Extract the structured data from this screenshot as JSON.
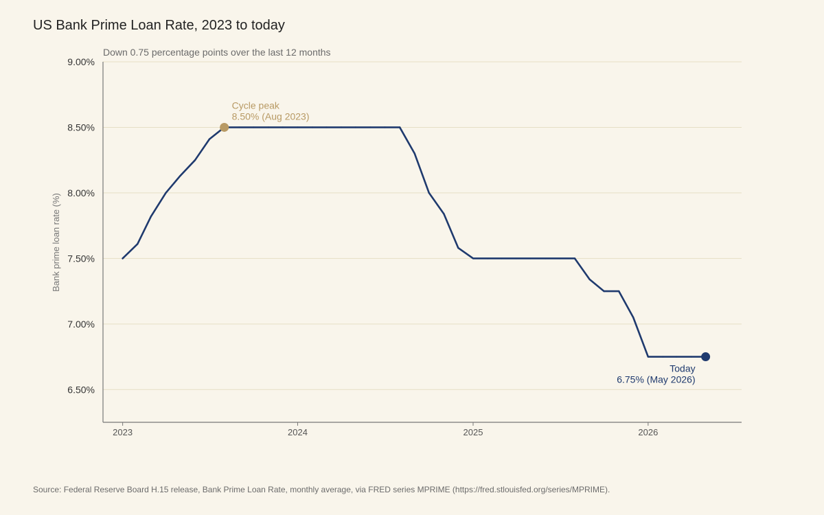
{
  "chart_data": {
    "type": "line",
    "title": "US Bank Prime Loan Rate, 2023 to today",
    "subtitle": "Down 0.75 percentage points over the last 12 months",
    "ylabel": "Bank prime loan rate (%)",
    "xlabel": "",
    "source": "Source: Federal Reserve Board H.15 release, Bank Prime Loan Rate, monthly average, via FRED series MPRIME (https://fred.stlouisfed.org/series/MPRIME).",
    "ylim": [
      6.25,
      9.0
    ],
    "xlim": [
      "2022-11-21",
      "2026-07-15"
    ],
    "y_ticks": [
      6.5,
      7.0,
      7.5,
      8.0,
      8.5,
      9.0
    ],
    "y_tick_labels": [
      "6.50%",
      "7.00%",
      "7.50%",
      "8.00%",
      "8.50%",
      "9.00%"
    ],
    "x_ticks": [
      "2023-01-01",
      "2024-01-01",
      "2025-01-01",
      "2026-01-01"
    ],
    "x_tick_labels": [
      "2023",
      "2024",
      "2025",
      "2026"
    ],
    "grid": "horizontal",
    "series": [
      {
        "x": [
          "2023-01-01",
          "2023-02-01",
          "2023-03-01",
          "2023-04-01",
          "2023-05-01",
          "2023-06-01",
          "2023-07-01",
          "2023-08-01",
          "2023-09-01",
          "2023-10-01",
          "2023-11-01",
          "2023-12-01",
          "2024-01-01",
          "2024-02-01",
          "2024-03-01",
          "2024-04-01",
          "2024-05-01",
          "2024-06-01",
          "2024-07-01",
          "2024-08-01",
          "2024-09-01",
          "2024-10-01",
          "2024-11-01",
          "2024-12-01",
          "2025-01-01",
          "2025-02-01",
          "2025-03-01",
          "2025-04-01",
          "2025-05-01",
          "2025-06-01",
          "2025-07-01",
          "2025-08-01",
          "2025-09-01",
          "2025-10-01",
          "2025-11-01",
          "2025-12-01",
          "2026-01-01",
          "2026-02-01",
          "2026-03-01",
          "2026-04-01",
          "2026-05-01"
        ],
        "values": [
          7.5,
          7.61,
          7.82,
          8.0,
          8.13,
          8.25,
          8.41,
          8.5,
          8.5,
          8.5,
          8.5,
          8.5,
          8.5,
          8.5,
          8.5,
          8.5,
          8.5,
          8.5,
          8.5,
          8.5,
          8.3,
          8.0,
          7.84,
          7.58,
          7.5,
          7.5,
          7.5,
          7.5,
          7.5,
          7.5,
          7.5,
          7.5,
          7.34,
          7.25,
          7.25,
          7.05,
          6.75,
          6.75,
          6.75,
          6.75,
          6.75
        ]
      }
    ],
    "annotations": [
      {
        "name": "peak",
        "x": "2023-08-01",
        "y": 8.5,
        "line1": "Cycle peak",
        "line2": "8.50% (Aug 2023)",
        "color": "#b89a64"
      },
      {
        "name": "today",
        "x": "2026-05-01",
        "y": 6.75,
        "line1": "Today",
        "line2": "6.75% (May 2026)",
        "color": "#1f3a6e"
      }
    ],
    "colors": {
      "line": "#1f3a6e",
      "peak": "#b89a64",
      "grid": "#e6dfc5",
      "axis": "#777777",
      "tick_text": "#333333",
      "subtitle_text": "#6b6b6b",
      "background": "#f9f5eb"
    }
  }
}
